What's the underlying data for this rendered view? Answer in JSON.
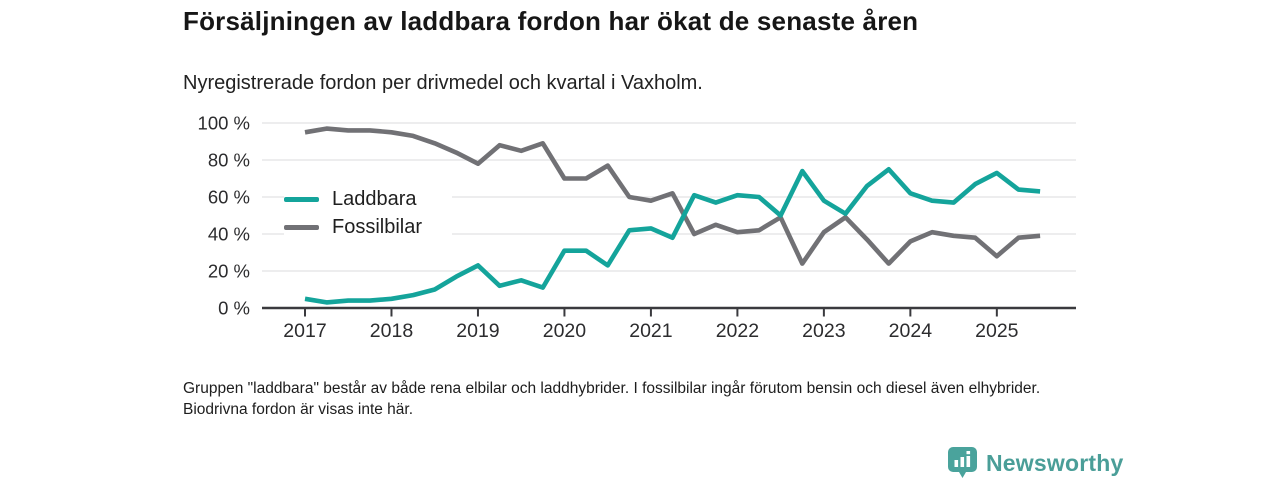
{
  "chart_data": {
    "type": "line",
    "title": "Försäljningen av laddbara fordon har ökat de senaste åren",
    "subtitle": "Nyregistrerade fordon per drivmedel och kvartal i Vaxholm.",
    "unit": "%",
    "ylim": [
      0,
      100
    ],
    "grid": true,
    "legend_position": "inside-upper-left",
    "categories": [
      "2017 Q1",
      "2017 Q2",
      "2017 Q3",
      "2017 Q4",
      "2018 Q1",
      "2018 Q2",
      "2018 Q3",
      "2018 Q4",
      "2019 Q1",
      "2019 Q2",
      "2019 Q3",
      "2019 Q4",
      "2020 Q1",
      "2020 Q2",
      "2020 Q3",
      "2020 Q4",
      "2021 Q1",
      "2021 Q2",
      "2021 Q3",
      "2021 Q4",
      "2022 Q1",
      "2022 Q2",
      "2022 Q3",
      "2022 Q4",
      "2023 Q1",
      "2023 Q2",
      "2023 Q3",
      "2023 Q4",
      "2024 Q1",
      "2024 Q2",
      "2024 Q3",
      "2024 Q4",
      "2025 Q1",
      "2025 Q2",
      "2025 Q3"
    ],
    "series": [
      {
        "name": "Laddbara",
        "color": "#14a49b",
        "values": [
          5,
          3,
          4,
          4,
          5,
          7,
          10,
          17,
          23,
          12,
          15,
          11,
          31,
          31,
          23,
          42,
          43,
          38,
          61,
          57,
          61,
          60,
          50,
          74,
          58,
          51,
          66,
          75,
          62,
          58,
          57,
          67,
          73,
          64,
          63
        ]
      },
      {
        "name": "Fossilbilar",
        "color": "#717175",
        "values": [
          95,
          97,
          96,
          96,
          95,
          93,
          89,
          84,
          78,
          88,
          85,
          89,
          70,
          70,
          77,
          60,
          58,
          62,
          40,
          45,
          41,
          42,
          49,
          24,
          41,
          49,
          37,
          24,
          36,
          41,
          39,
          38,
          28,
          38,
          39
        ]
      }
    ],
    "y_tick_values": [
      0,
      20,
      40,
      60,
      80,
      100
    ],
    "y_tick_labels": [
      "0 %",
      "20 %",
      "40 %",
      "60 %",
      "80 %",
      "100 %"
    ],
    "x_tick_labels": [
      "2017",
      "2018",
      "2019",
      "2020",
      "2021",
      "2022",
      "2023",
      "2024",
      "2025"
    ]
  },
  "footnote": "Gruppen \"laddbara\" består av både rena elbilar och laddhybrider. I fossilbilar ingår förutom bensin och diesel även elhybrider. Biodrivna fordon är visas inte här.",
  "branding": {
    "logo_text": "Newsworthy",
    "logo_icon": "bar-chart-pin-icon",
    "brand_color": "#4a9e98"
  }
}
